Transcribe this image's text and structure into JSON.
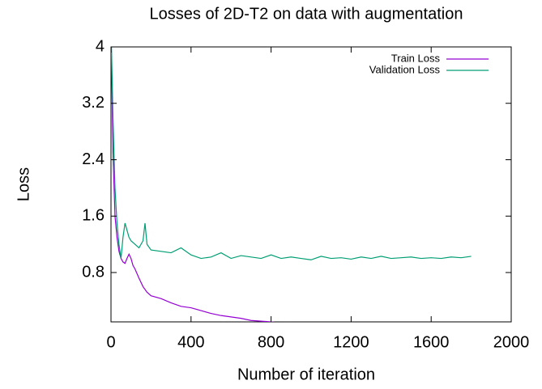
{
  "chart_data": {
    "type": "line",
    "title": "Losses of 2D-T2 on data with augmentation",
    "xlabel": "Number of iteration",
    "ylabel": "Loss",
    "xlim": [
      0,
      2000
    ],
    "xticks": [
      0,
      400,
      800,
      1200,
      1600,
      2000
    ],
    "ylim": [
      0.1,
      4
    ],
    "yticks": [
      0.8,
      1.6,
      2.4,
      3.2,
      4
    ],
    "legend": "top right",
    "series": [
      {
        "name": "Train Loss",
        "color": "#9400d3",
        "x": [
          0,
          10,
          20,
          30,
          40,
          50,
          60,
          70,
          80,
          90,
          100,
          110,
          120,
          140,
          160,
          180,
          200,
          250,
          300,
          350,
          400,
          450,
          500,
          550,
          600,
          650,
          700,
          750,
          800,
          850
        ],
        "values": [
          4.3,
          2.5,
          1.6,
          1.3,
          1.1,
          1.0,
          0.95,
          0.93,
          1.0,
          1.06,
          1.0,
          0.9,
          0.85,
          0.72,
          0.6,
          0.52,
          0.47,
          0.43,
          0.37,
          0.32,
          0.3,
          0.26,
          0.22,
          0.19,
          0.17,
          0.15,
          0.12,
          0.11,
          0.1,
          0.08
        ]
      },
      {
        "name": "Validation Loss",
        "color": "#009e73",
        "x": [
          0,
          10,
          20,
          30,
          40,
          50,
          60,
          70,
          80,
          90,
          100,
          120,
          140,
          160,
          170,
          180,
          200,
          250,
          300,
          350,
          400,
          450,
          500,
          550,
          600,
          650,
          700,
          750,
          800,
          850,
          900,
          950,
          1000,
          1050,
          1100,
          1150,
          1200,
          1250,
          1300,
          1350,
          1400,
          1450,
          1500,
          1550,
          1600,
          1650,
          1700,
          1750,
          1800
        ],
        "values": [
          4.3,
          3.0,
          2.0,
          1.5,
          1.2,
          1.0,
          1.3,
          1.5,
          1.4,
          1.3,
          1.25,
          1.2,
          1.15,
          1.25,
          1.5,
          1.2,
          1.12,
          1.1,
          1.08,
          1.15,
          1.05,
          1.0,
          1.02,
          1.08,
          1.0,
          1.04,
          1.02,
          1.0,
          1.05,
          1.0,
          1.02,
          1.0,
          0.98,
          1.03,
          1.0,
          1.01,
          0.99,
          1.02,
          1.0,
          1.03,
          1.0,
          1.01,
          1.02,
          1.0,
          1.01,
          1.0,
          1.02,
          1.01,
          1.03
        ]
      }
    ]
  }
}
